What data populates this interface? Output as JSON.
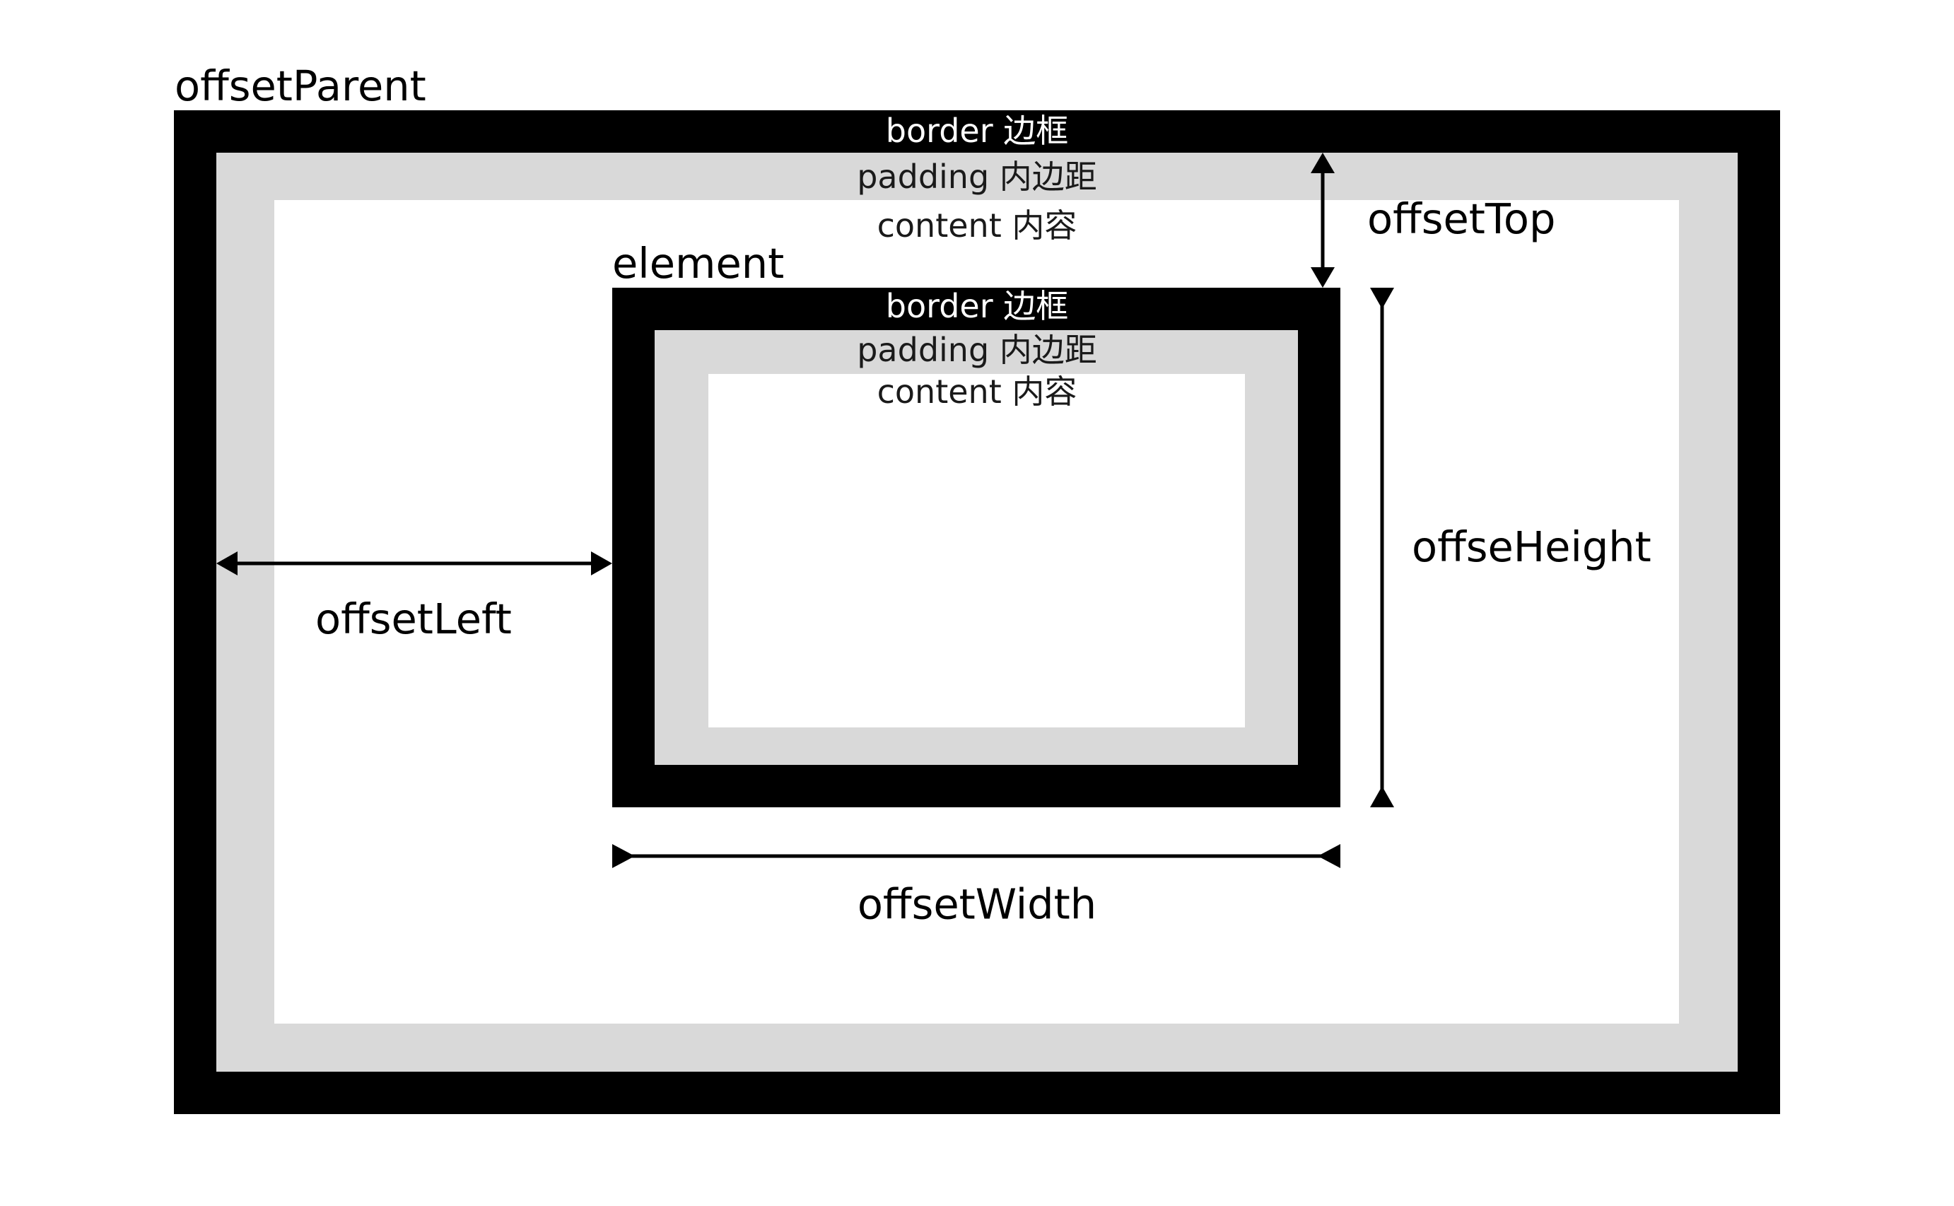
{
  "colors": {
    "border": "#000000",
    "padding": "#d9d9d9",
    "content": "#ffffff",
    "arrow": "#000000"
  },
  "parent": {
    "title": "offsetParent",
    "border_label": "border 边框",
    "padding_label": "padding 内边距",
    "content_label": "content 内容"
  },
  "element": {
    "title": "element",
    "border_label": "border 边框",
    "padding_label": "padding 内边距",
    "content_label": "content 内容"
  },
  "measures": {
    "offset_top": "offsetTop",
    "offset_left": "offsetLeft",
    "offset_height": "offseHeight",
    "offset_width": "offsetWidth"
  }
}
